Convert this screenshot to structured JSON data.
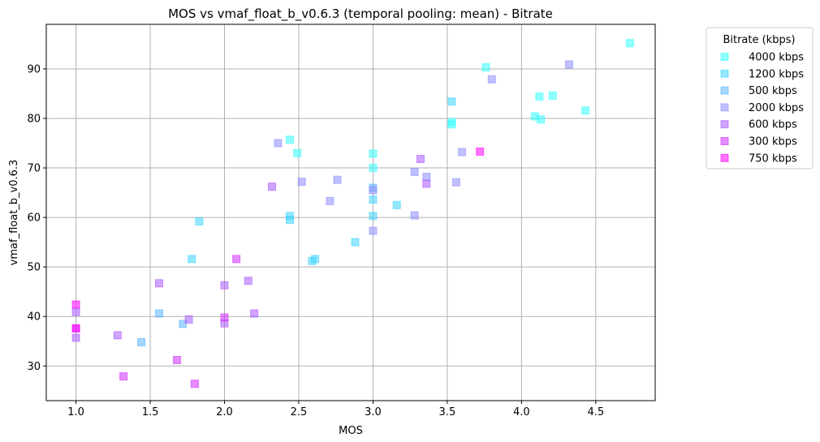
{
  "chart_data": {
    "type": "scatter",
    "title": "MOS vs vmaf_float_b_v0.6.3 (temporal pooling: mean) - Bitrate",
    "xlabel": "MOS",
    "ylabel": "vmaf_float_b_v0.6.3",
    "xlim": [
      0.8,
      4.9
    ],
    "ylim": [
      23,
      99
    ],
    "xticks": [
      "1.0",
      "1.5",
      "2.0",
      "2.5",
      "3.0",
      "3.5",
      "4.0",
      "4.5"
    ],
    "yticks": [
      "30",
      "40",
      "50",
      "60",
      "70",
      "80",
      "90"
    ],
    "grid": true,
    "marker": "square",
    "legend": {
      "title": "Bitrate (kbps)",
      "placement": "outside-top-right"
    },
    "series": [
      {
        "name": "4000 kbps",
        "color": "#33ffff",
        "x": [
          4.73,
          3.76,
          4.21,
          4.12,
          4.09,
          4.13,
          4.43,
          3.53,
          3.53,
          2.44,
          2.49,
          3.0,
          3.0
        ],
        "y": [
          95.2,
          90.3,
          84.6,
          84.4,
          80.4,
          79.8,
          81.6,
          79.3,
          78.8,
          75.7,
          73.0,
          72.9,
          70.0
        ]
      },
      {
        "name": "1200 kbps",
        "color": "#3cd4ff",
        "x": [
          3.53,
          3.0,
          3.16,
          2.44,
          2.44,
          3.0,
          2.88,
          1.83,
          1.78,
          2.59,
          2.61
        ],
        "y": [
          83.4,
          63.6,
          62.5,
          60.3,
          59.5,
          60.3,
          55.0,
          59.2,
          51.6,
          51.2,
          51.6
        ]
      },
      {
        "name": "500 kbps",
        "color": "#5ab4ff",
        "x": [
          1.44,
          1.56,
          1.72,
          3.0
        ],
        "y": [
          34.8,
          40.6,
          38.5,
          66.0
        ]
      },
      {
        "name": "2000 kbps",
        "color": "#8c8cff",
        "x": [
          4.32,
          3.8,
          3.6,
          2.36,
          2.52,
          2.76,
          2.71,
          3.28,
          3.36,
          3.56,
          3.0,
          3.28,
          3.0
        ],
        "y": [
          90.9,
          87.9,
          73.2,
          75.0,
          67.2,
          67.6,
          63.3,
          69.2,
          68.2,
          67.1,
          65.5,
          60.4,
          57.3
        ]
      },
      {
        "name": "600 kbps",
        "color": "#aa5aff",
        "x": [
          3.32,
          3.36,
          2.32,
          1.56,
          2.0,
          2.16,
          1.0,
          1.0,
          1.28,
          1.76,
          2.0,
          2.2
        ],
        "y": [
          71.8,
          66.8,
          66.2,
          46.7,
          46.3,
          47.2,
          40.9,
          35.7,
          36.2,
          39.4,
          38.6,
          40.6
        ]
      },
      {
        "name": "300 kbps",
        "color": "#d22dff",
        "x": [
          2.08,
          2.0,
          1.0,
          1.32,
          1.68,
          1.8
        ],
        "y": [
          51.6,
          39.8,
          37.6,
          27.9,
          31.2,
          26.4
        ]
      },
      {
        "name": "750 kbps",
        "color": "#ff00ff",
        "x": [
          3.72,
          1.0,
          1.0
        ],
        "y": [
          73.3,
          42.4,
          37.6
        ]
      }
    ]
  }
}
